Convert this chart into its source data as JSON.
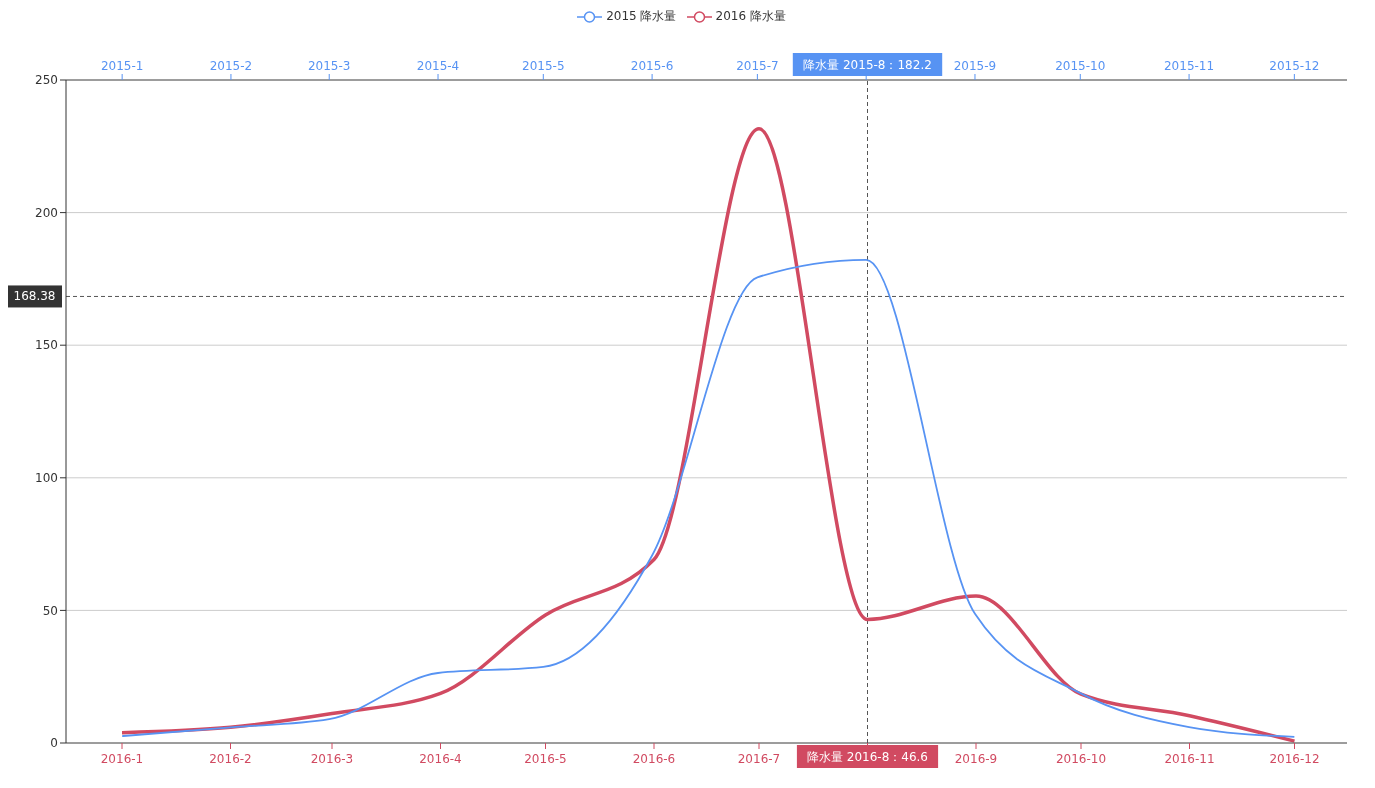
{
  "chart_data": {
    "type": "line",
    "x": [
      "2016-01",
      "2016-02",
      "2016-03",
      "2016-04",
      "2016-05",
      "2016-06",
      "2016-07",
      "2016-08",
      "2016-09",
      "2016-10",
      "2016-11",
      "2016-12"
    ],
    "xlim": [
      "2015-12-16",
      "2016-12-16"
    ],
    "xticks": [
      {
        "value": "2016-01",
        "label": "2016-1"
      },
      {
        "value": "2016-02",
        "label": "2016-2"
      },
      {
        "value": "2016-03",
        "label": "2016-3"
      },
      {
        "value": "2016-04",
        "label": "2016-4"
      },
      {
        "value": "2016-05",
        "label": "2016-5"
      },
      {
        "value": "2016-06",
        "label": "2016-6"
      },
      {
        "value": "2016-07",
        "label": "2016-7"
      },
      {
        "value": "2016-08",
        "label": null
      },
      {
        "value": "2016-09",
        "label": "2016-9"
      },
      {
        "value": "2016-10",
        "label": "2016-10"
      },
      {
        "value": "2016-11",
        "label": "2016-11"
      },
      {
        "value": "2016-12",
        "label": "2016-12"
      }
    ],
    "x2lim": [
      "2014-12-16",
      "2015-12-16"
    ],
    "x2ticks": [
      {
        "value": "2015-01",
        "label": "2015-1"
      },
      {
        "value": "2015-02",
        "label": "2015-2"
      },
      {
        "value": "2015-03",
        "label": "2015-3"
      },
      {
        "value": "2015-04",
        "label": "2015-4"
      },
      {
        "value": "2015-05",
        "label": "2015-5"
      },
      {
        "value": "2015-06",
        "label": "2015-6"
      },
      {
        "value": "2015-07",
        "label": "2015-7"
      },
      {
        "value": "2015-08",
        "label": null
      },
      {
        "value": "2015-09",
        "label": "2015-9"
      },
      {
        "value": "2015-10",
        "label": "2015-10"
      },
      {
        "value": "2015-11",
        "label": "2015-11"
      },
      {
        "value": "2015-12",
        "label": "2015-12"
      }
    ],
    "series": [
      {
        "name": "2015 降水量",
        "color": "#5793f3",
        "axis": "x2",
        "x": [
          "2015-01",
          "2015-02",
          "2015-03",
          "2015-04",
          "2015-05",
          "2015-06",
          "2015-07",
          "2015-08",
          "2015-09",
          "2015-10",
          "2015-11",
          "2015-12"
        ],
        "values": [
          2.6,
          5.9,
          9.0,
          26.4,
          28.7,
          70.7,
          175.6,
          182.2,
          48.7,
          18.8,
          6.0,
          2.3
        ]
      },
      {
        "name": "2016 降水量",
        "color": "#d14a61",
        "values": [
          3.9,
          5.9,
          11.1,
          18.7,
          48.3,
          69.2,
          231.6,
          46.6,
          55.4,
          18.4,
          10.3,
          0.7
        ]
      }
    ],
    "ylim": [
      0,
      250
    ],
    "yticks": [
      0,
      50,
      100,
      150,
      200,
      250
    ],
    "grid": "y",
    "legend": "top",
    "marker": "none",
    "line_style": "solid",
    "ref_lines": [
      {
        "axis": "y",
        "value": 168.38,
        "label": "168.38",
        "line_style": "dashed"
      },
      {
        "axis": "x",
        "value": "2016-08",
        "line_style": "dashed"
      }
    ],
    "annotations": [
      "降水量  2015-8：182.2",
      "降水量  2016-8：46.6"
    ]
  }
}
